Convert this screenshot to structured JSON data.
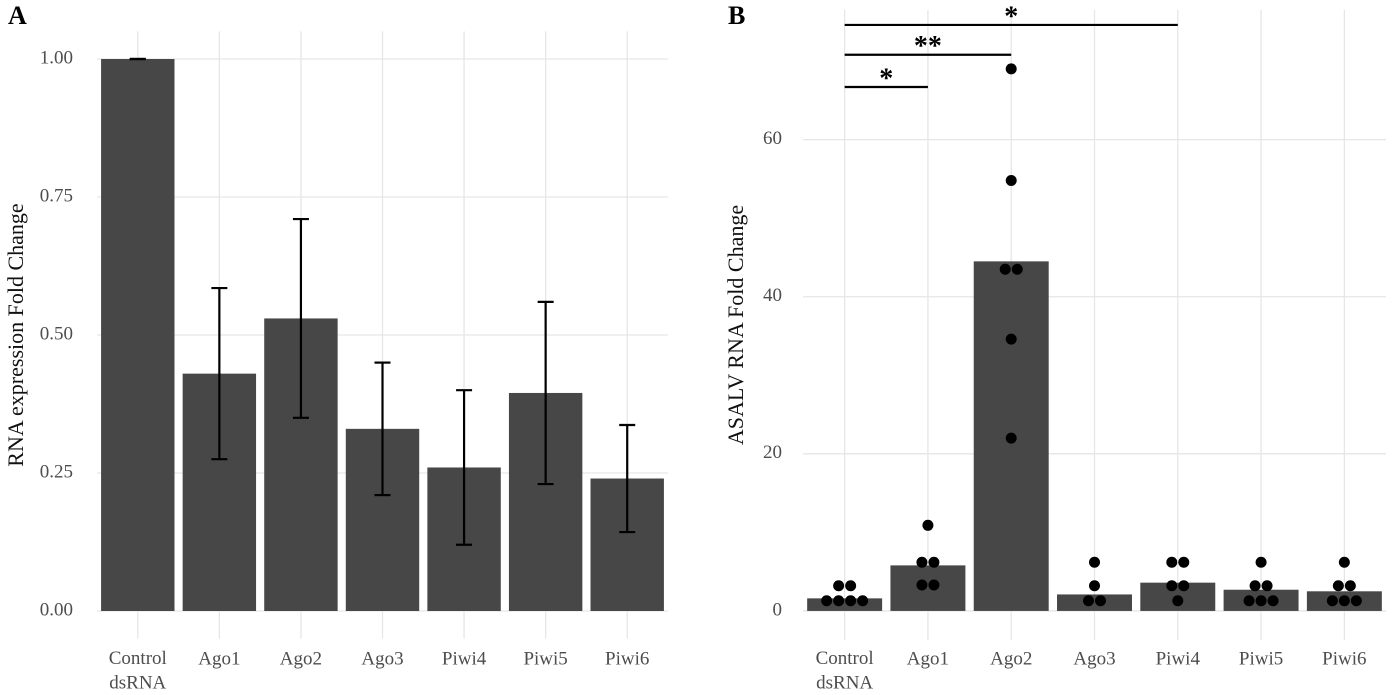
{
  "chart_data": [
    {
      "type": "bar",
      "title": "A",
      "ylabel": "RNA expression Fold Change",
      "categories": [
        "Control\ndsRNA",
        "Ago1",
        "Ago2",
        "Ago3",
        "Piwi4",
        "Piwi5",
        "Piwi6"
      ],
      "values": [
        1.0,
        0.43,
        0.53,
        0.33,
        0.26,
        0.395,
        0.24
      ],
      "errors": [
        0,
        0.155,
        0.18,
        0.12,
        0.14,
        0.165,
        0.097
      ],
      "color": "#474747",
      "error_color": "#000000",
      "ylim": [
        -0.05,
        1.05
      ],
      "yticks": [
        {
          "value": 0,
          "label": "0.00"
        },
        {
          "value": 0.25,
          "label": "0.25"
        },
        {
          "value": 0.5,
          "label": "0.50"
        },
        {
          "value": 0.75,
          "label": "0.75"
        },
        {
          "value": 1,
          "label": "1.00"
        }
      ],
      "grid": true
    },
    {
      "type": "bar",
      "title": "B",
      "ylabel": "ASALV RNA Fold Change",
      "categories": [
        "Control\ndsRNA",
        "Ago1",
        "Ago2",
        "Ago3",
        "Piwi4",
        "Piwi5",
        "Piwi6"
      ],
      "values": [
        1.6,
        5.8,
        44.5,
        2.1,
        3.6,
        2.7,
        2.5
      ],
      "points": [
        [
          3.2,
          3.2,
          1.3,
          1.3,
          1.3,
          1.3
        ],
        [
          10.9,
          6.2,
          6.2,
          3.3,
          3.3
        ],
        [
          69,
          54.8,
          43.5,
          43.5,
          34.6,
          22
        ],
        [
          6.2,
          3.2,
          1.3,
          1.3
        ],
        [
          6.2,
          6.2,
          3.2,
          3.2,
          1.3
        ],
        [
          6.2,
          3.2,
          3.2,
          1.3,
          1.3,
          1.3
        ],
        [
          6.2,
          3.2,
          3.2,
          1.3,
          1.3,
          1.3
        ]
      ],
      "point_color": "#000000",
      "color": "#474747",
      "significance": [
        {
          "from": 0,
          "to": 1,
          "label": "*",
          "y": 66.7
        },
        {
          "from": 0,
          "to": 2,
          "label": "**",
          "y": 70.8
        },
        {
          "from": 0,
          "to": 4,
          "label": "*",
          "y": 74.6
        }
      ],
      "ylim": [
        -3.7,
        76.5
      ],
      "yticks": [
        0,
        20,
        40,
        60
      ],
      "grid": true
    }
  ]
}
